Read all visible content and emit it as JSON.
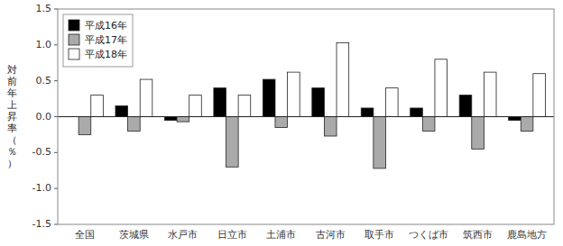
{
  "chart_data": {
    "type": "bar",
    "y_label": "対前年上昇率（％）",
    "categories": [
      "全国",
      "茨城県",
      "水戸市",
      "日立市",
      "土浦市",
      "古河市",
      "取手市",
      "つくば市",
      "筑西市",
      "鹿島地方"
    ],
    "series": [
      {
        "name": "平成16年",
        "color": "#000000",
        "values": [
          0.0,
          0.15,
          -0.05,
          0.4,
          0.52,
          0.4,
          0.12,
          0.12,
          0.3,
          -0.05
        ]
      },
      {
        "name": "平成17年",
        "color": "#aaaaaa",
        "values": [
          -0.25,
          -0.2,
          -0.07,
          -0.7,
          -0.15,
          -0.27,
          -0.72,
          -0.2,
          -0.45,
          -0.2
        ]
      },
      {
        "name": "平成18年",
        "color": "#ffffff",
        "values": [
          0.3,
          0.52,
          0.3,
          0.3,
          0.62,
          1.03,
          0.4,
          0.8,
          0.62,
          0.6
        ]
      }
    ],
    "ylim": [
      -1.5,
      1.5
    ],
    "yticks": [
      -1.5,
      {
        "value": -1.0,
        "label": "-1.0"
      },
      -0.5,
      {
        "value": 0.0,
        "label": "0.0"
      },
      0.5,
      {
        "value": 1.0,
        "label": "1.0"
      },
      1.5
    ],
    "legend": "upper left",
    "grid": false
  }
}
